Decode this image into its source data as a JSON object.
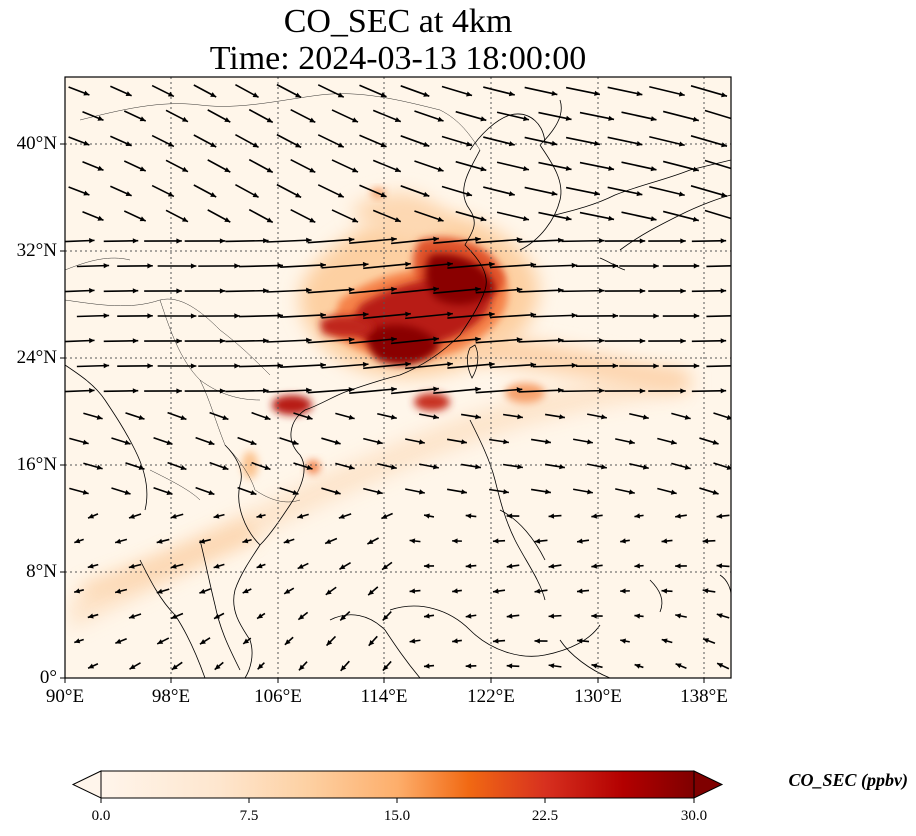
{
  "title": {
    "line1": "CO_SEC at 4km",
    "line2": "Time: 2024-03-13 18:00:00"
  },
  "map": {
    "lon_range": [
      90,
      140
    ],
    "lat_range": [
      0,
      44
    ],
    "lon_ticks": [
      "90°E",
      "98°E",
      "106°E",
      "114°E",
      "122°E",
      "130°E",
      "138°E"
    ],
    "lat_ticks": [
      "0°",
      "8°N",
      "16°N",
      "24°N",
      "32°N",
      "40°N"
    ],
    "gridlines": true,
    "field": "CO_SEC",
    "vectors": "wind vectors, predominantly westerly"
  },
  "colorbar": {
    "label": "CO_SEC (ppbv)",
    "ticks": [
      "0.0",
      "7.5",
      "15.0",
      "22.5",
      "30.0"
    ],
    "min": 0,
    "max": 30,
    "extend": "both",
    "colormap": [
      "#fff5eb",
      "#fdd9b4",
      "#fdae6b",
      "#f16913",
      "#d94801",
      "#a50f15",
      "#7f0000"
    ]
  }
}
